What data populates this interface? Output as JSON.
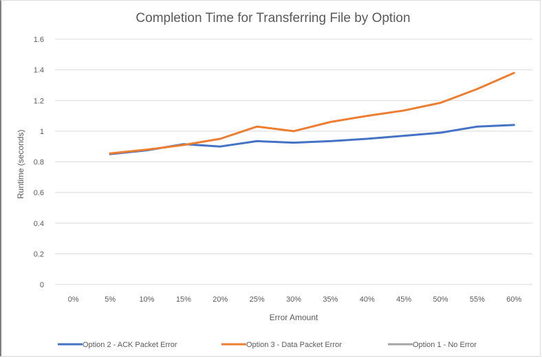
{
  "chart_data": {
    "type": "line",
    "title": "Completion Time for Transferring File by Option",
    "xlabel": "Error Amount",
    "ylabel": "Runtime (seconds)",
    "categories": [
      "0%",
      "5%",
      "10%",
      "15%",
      "20%",
      "25%",
      "30%",
      "35%",
      "40%",
      "45%",
      "50%",
      "55%",
      "60%"
    ],
    "ylim": [
      0,
      1.6
    ],
    "yticks": [
      "0",
      "0.2",
      "0.4",
      "0.6",
      "0.8",
      "1",
      "1.2",
      "1.4",
      "1.6"
    ],
    "grid": true,
    "legend_position": "bottom",
    "series": [
      {
        "name": "Option 2 - ACK Packet Error",
        "color": "#4472c4",
        "values": [
          null,
          0.85,
          0.875,
          0.915,
          0.9,
          0.935,
          0.925,
          0.935,
          0.95,
          0.97,
          0.99,
          1.03,
          1.04
        ]
      },
      {
        "name": "Option 3 - Data Packet Error",
        "color": "#ed7d31",
        "values": [
          null,
          0.855,
          0.88,
          0.91,
          0.95,
          1.03,
          1.0,
          1.06,
          1.1,
          1.135,
          1.185,
          1.275,
          1.38
        ]
      },
      {
        "name": "Option 1 - No Error",
        "color": "#a5a5a5",
        "values": [
          null,
          null,
          null,
          null,
          null,
          null,
          null,
          null,
          null,
          null,
          null,
          null,
          null
        ]
      }
    ]
  }
}
